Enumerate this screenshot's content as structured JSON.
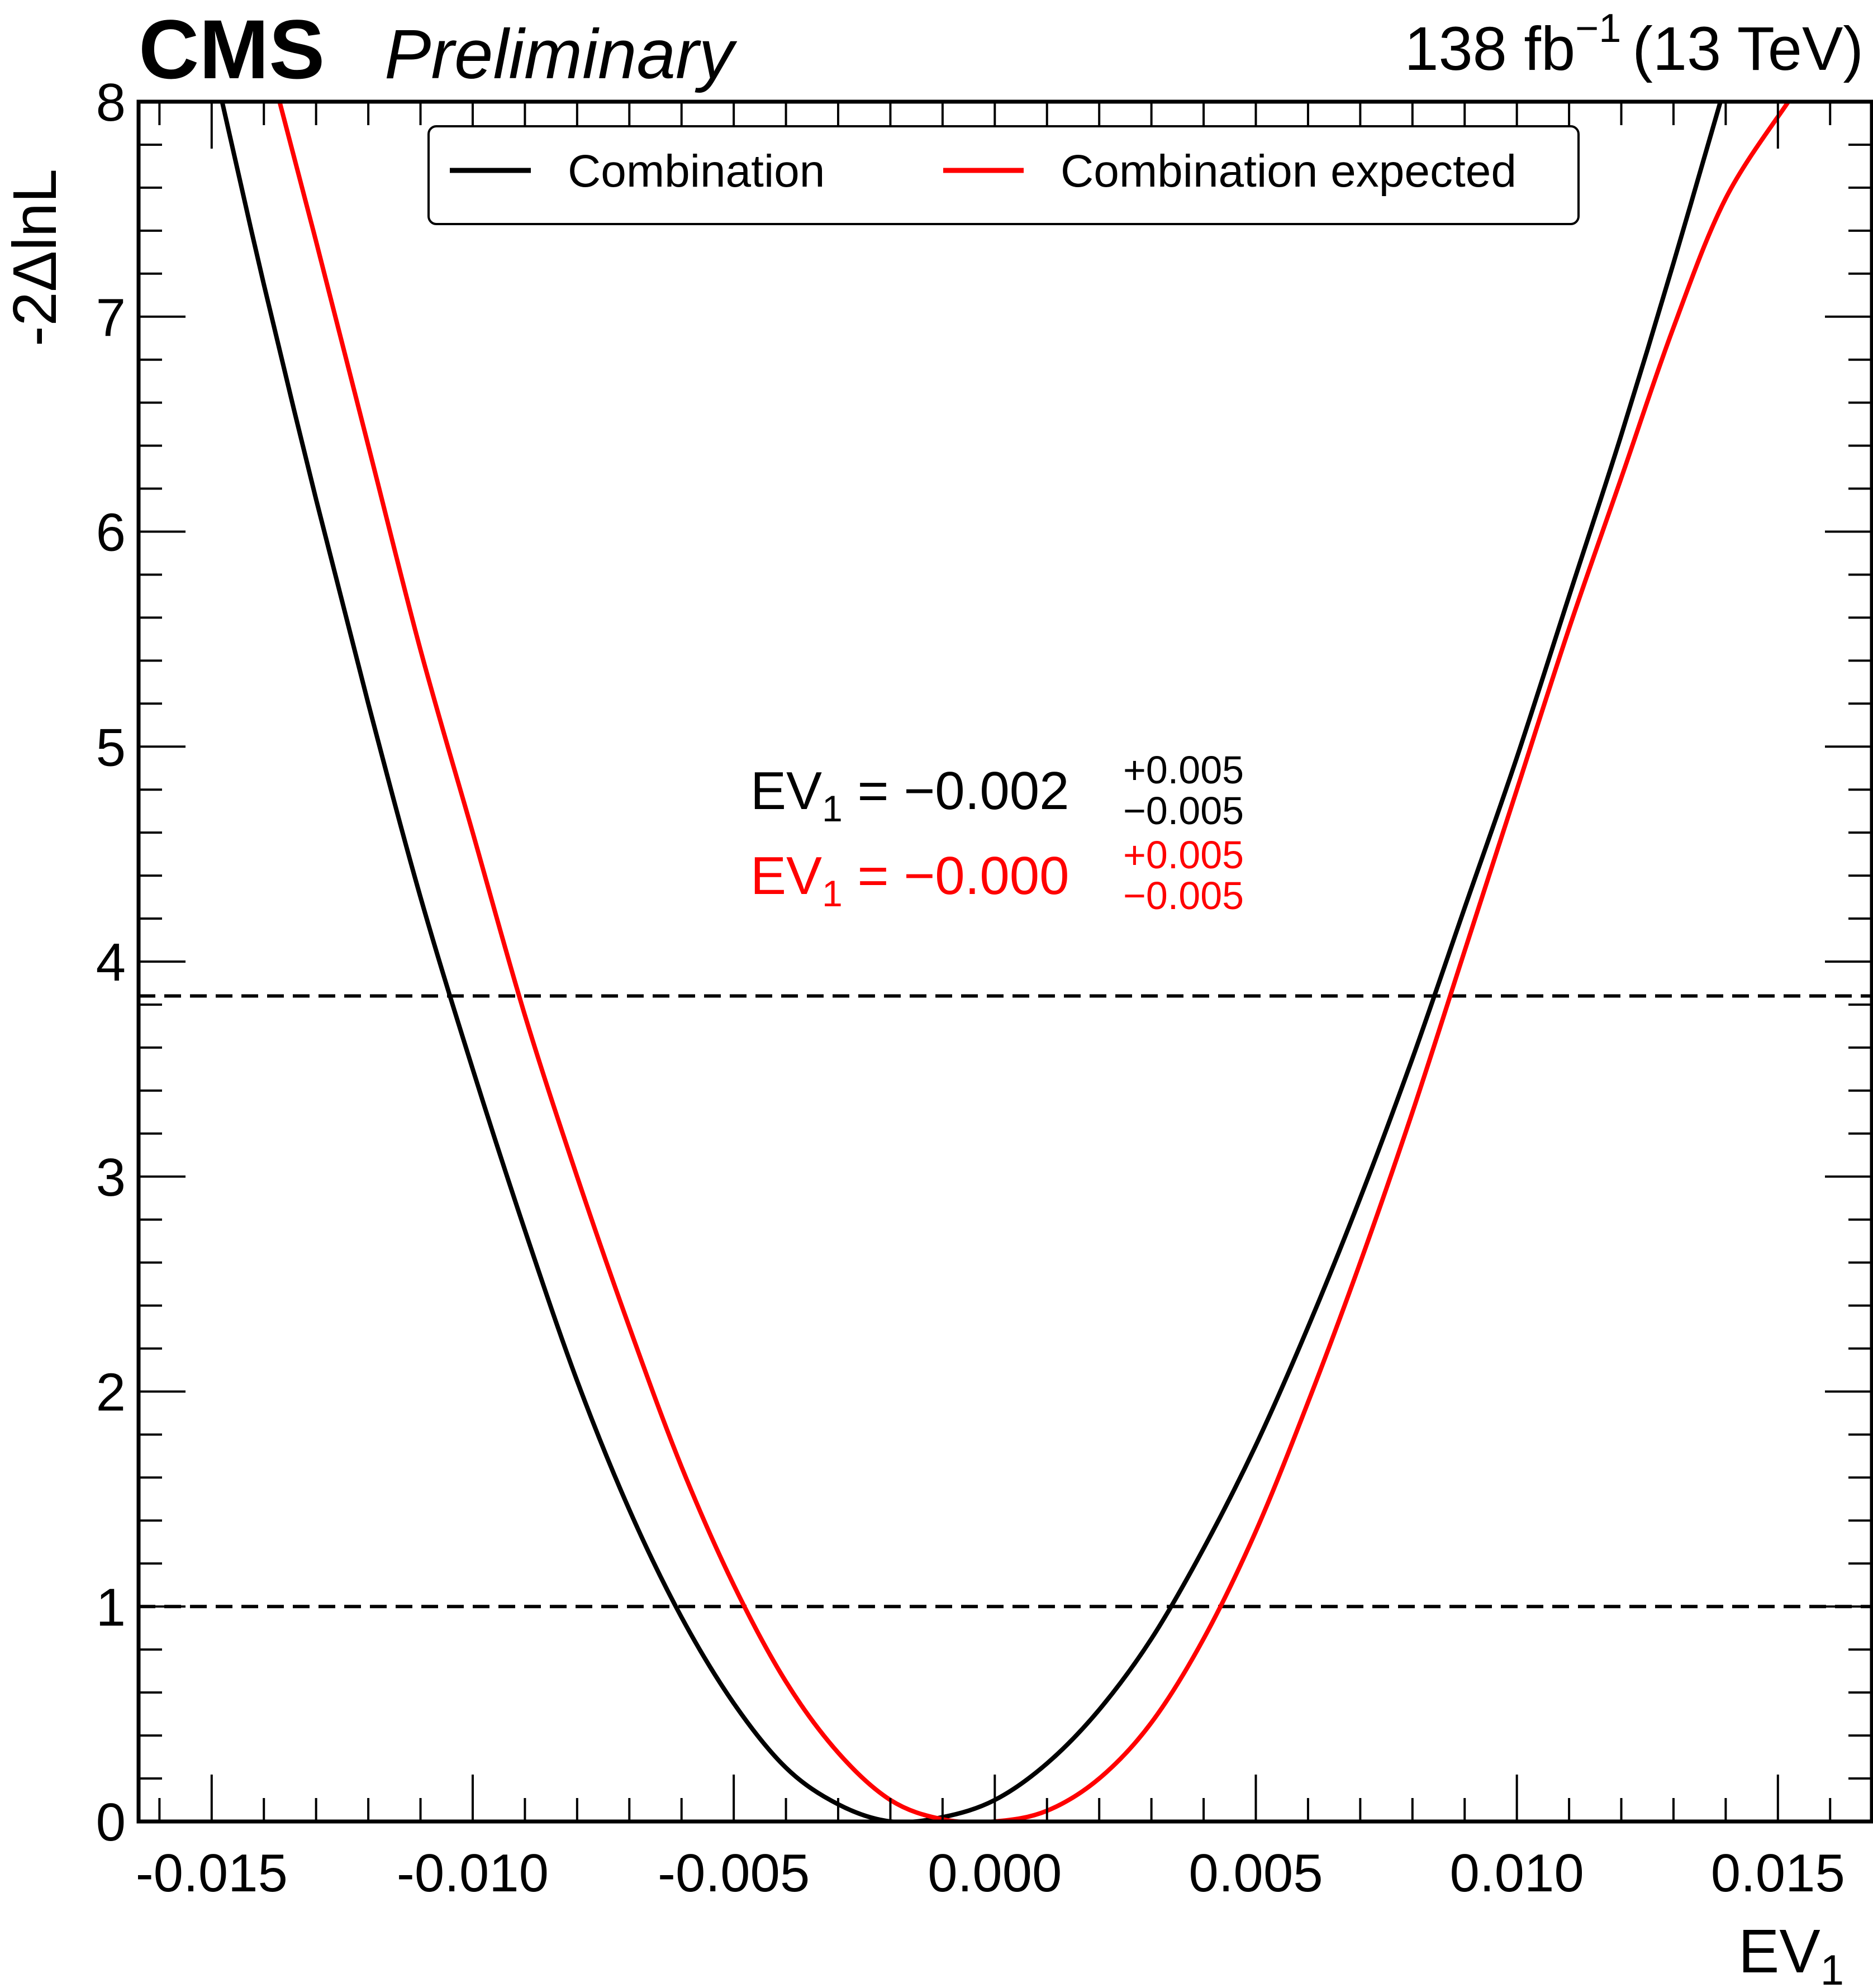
{
  "header": {
    "experiment": "CMS",
    "status": "Preliminary",
    "lumi_value": "138 fb",
    "lumi_exp": "−1",
    "energy": "(13 TeV)"
  },
  "annotations": {
    "observed": {
      "label": "EV",
      "sub": "1",
      "eq": " = −0.002",
      "up": "+0.005",
      "down": "−0.005",
      "color": "#000000"
    },
    "expected": {
      "label": "EV",
      "sub": "1",
      "eq": " = −0.000",
      "up": "+0.005",
      "down": "−0.005",
      "color": "#ff0000"
    }
  },
  "chart_data": {
    "type": "line",
    "xlabel": "EV",
    "xlabel_sub": "1",
    "ylabel": "-2ΔlnL",
    "xlim": [
      -0.0164,
      0.0168
    ],
    "ylim": [
      0,
      8
    ],
    "xticks": [
      -0.015,
      -0.01,
      -0.005,
      0.0,
      0.005,
      0.01,
      0.015
    ],
    "xtick_labels": [
      "-0.015",
      "-0.010",
      "-0.005",
      "0.000",
      "0.005",
      "0.010",
      "0.015"
    ],
    "yticks": [
      0,
      1,
      2,
      3,
      4,
      5,
      6,
      7,
      8
    ],
    "ytick_labels": [
      "0",
      "1",
      "2",
      "3",
      "4",
      "5",
      "6",
      "7",
      "8"
    ],
    "reference_lines": [
      {
        "y": 1.0,
        "style": "dashed",
        "color": "#000000"
      },
      {
        "y": 3.84,
        "style": "dashed",
        "color": "#000000"
      }
    ],
    "legend": {
      "placement": "top-center",
      "ncol": 2
    },
    "series": [
      {
        "name": "Combination",
        "color": "#000000",
        "x": [
          -0.0148,
          -0.014,
          -0.013,
          -0.012,
          -0.011,
          -0.01,
          -0.009,
          -0.008,
          -0.007,
          -0.006,
          -0.005,
          -0.004,
          -0.003,
          -0.002,
          -0.001,
          0.0,
          0.001,
          0.002,
          0.003,
          0.004,
          0.005,
          0.006,
          0.007,
          0.008,
          0.009,
          0.01,
          0.011,
          0.012,
          0.013,
          0.0139
        ],
        "y": [
          8.0,
          7.15,
          6.15,
          5.2,
          4.3,
          3.5,
          2.75,
          2.05,
          1.45,
          0.95,
          0.55,
          0.25,
          0.08,
          0.0,
          0.02,
          0.1,
          0.27,
          0.52,
          0.85,
          1.27,
          1.75,
          2.3,
          2.9,
          3.55,
          4.25,
          4.95,
          5.7,
          6.45,
          7.25,
          8.0
        ]
      },
      {
        "name": "Combination expected",
        "color": "#ff0000",
        "x": [
          -0.0137,
          -0.013,
          -0.012,
          -0.011,
          -0.01,
          -0.009,
          -0.008,
          -0.007,
          -0.006,
          -0.005,
          -0.004,
          -0.003,
          -0.002,
          -0.001,
          0.0,
          0.001,
          0.002,
          0.003,
          0.004,
          0.005,
          0.006,
          0.007,
          0.008,
          0.009,
          0.01,
          0.011,
          0.012,
          0.013,
          0.014,
          0.0152
        ],
        "y": [
          8.0,
          7.35,
          6.4,
          5.45,
          4.6,
          3.75,
          3.0,
          2.3,
          1.65,
          1.1,
          0.65,
          0.32,
          0.1,
          0.01,
          0.0,
          0.05,
          0.2,
          0.46,
          0.85,
          1.35,
          1.95,
          2.6,
          3.3,
          4.05,
          4.8,
          5.55,
          6.25,
          6.95,
          7.55,
          8.0
        ]
      }
    ]
  }
}
